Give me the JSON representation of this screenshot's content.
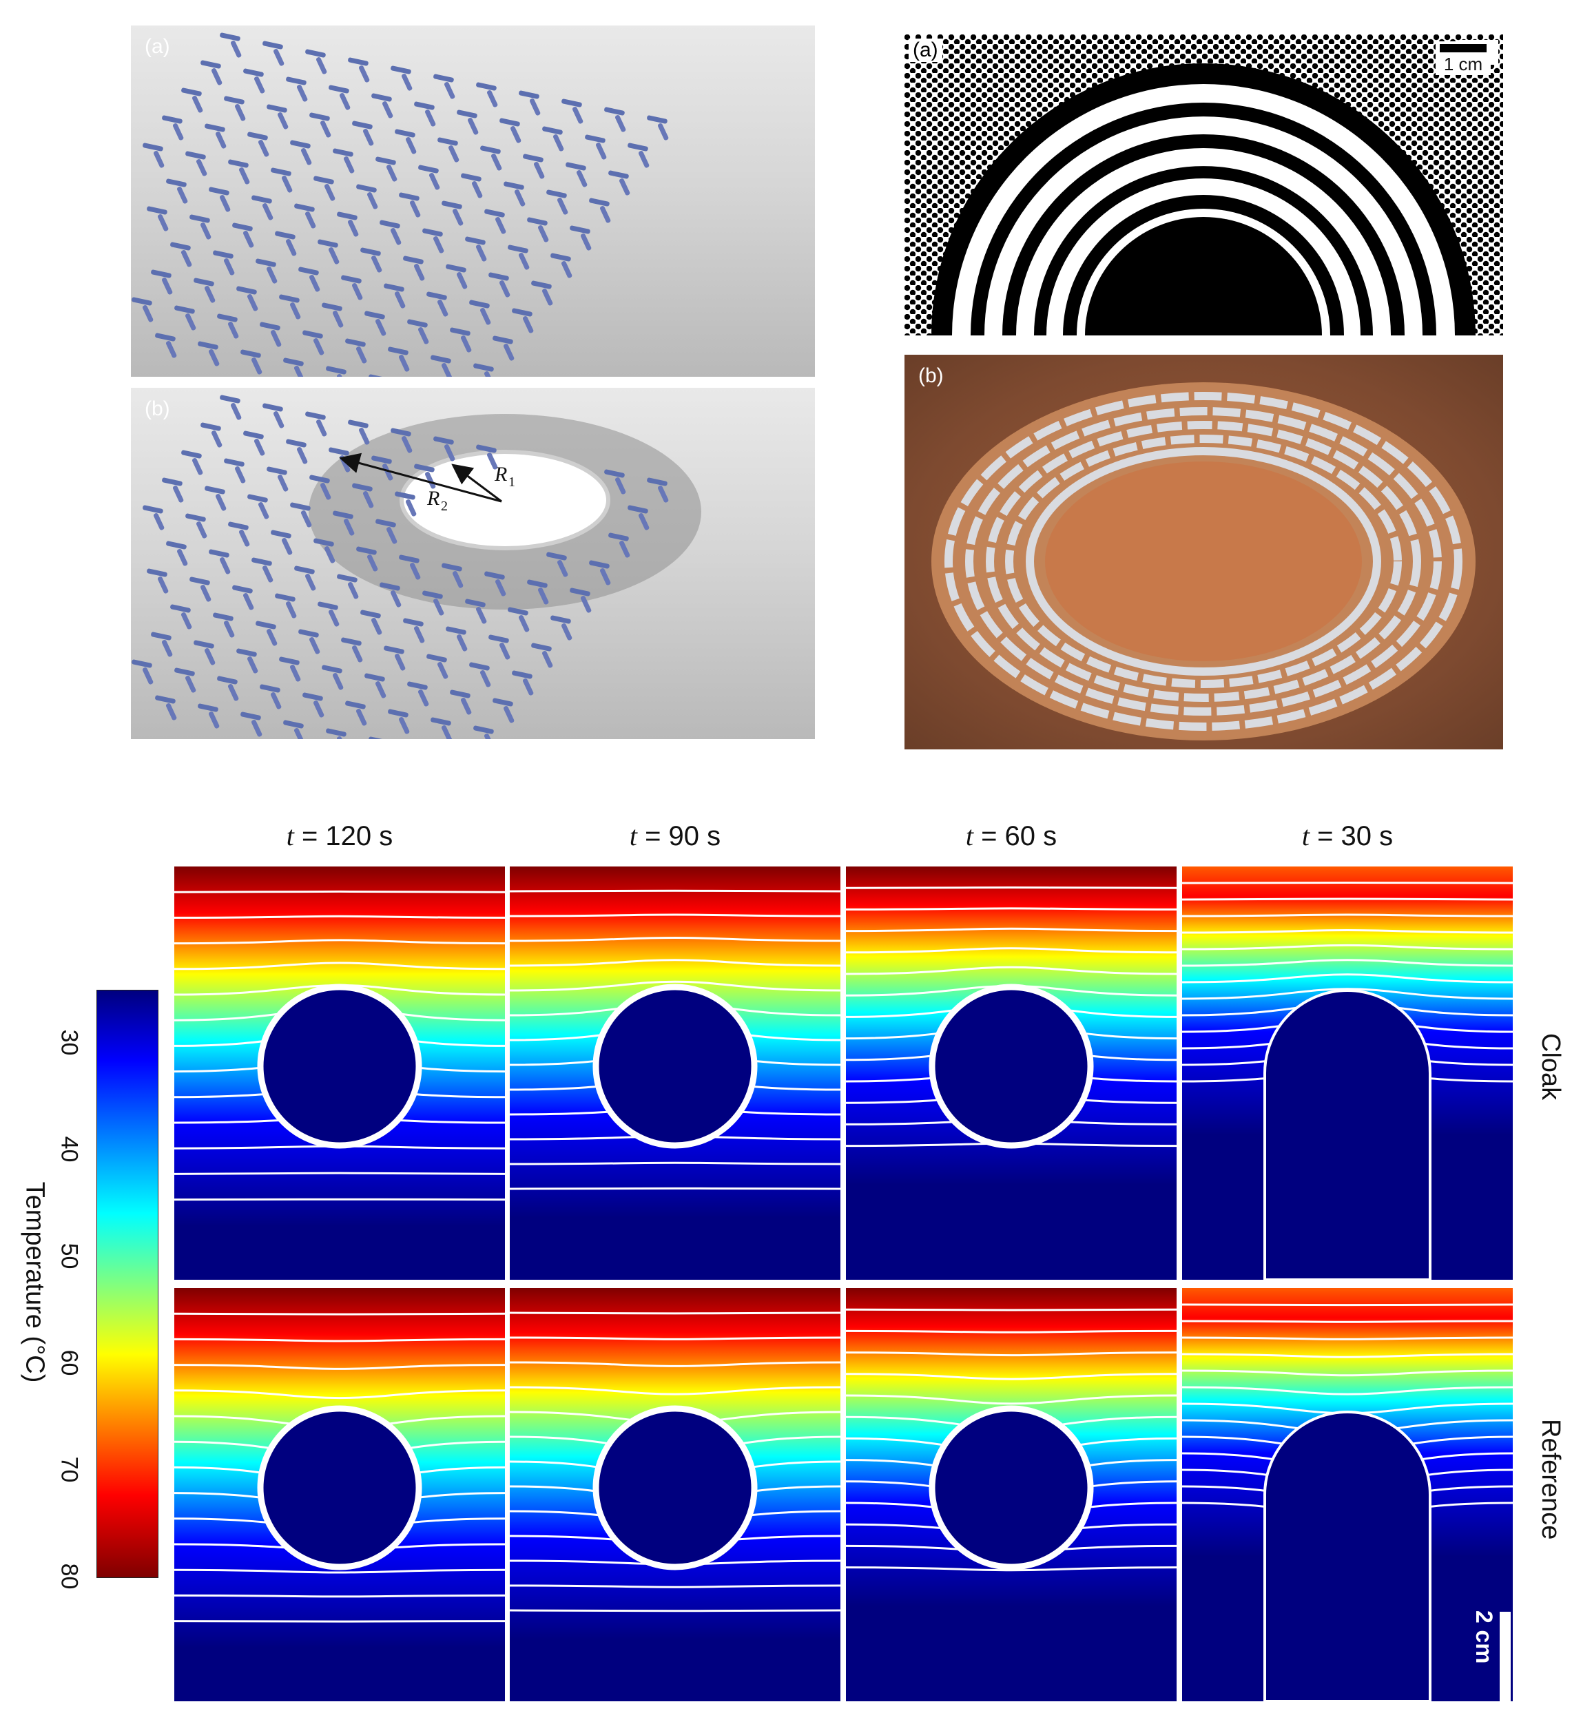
{
  "top_left": {
    "panel_a_label": "(a)",
    "panel_b_label": "(b)",
    "r1_label": "R",
    "r1_sub": "1",
    "r2_label": "R",
    "r2_sub": "2"
  },
  "top_right": {
    "panel_a_label": "(a)",
    "panel_b_label": "(b)",
    "scale_label": "1 cm"
  },
  "thermal": {
    "columns": [
      {
        "t_var": "t",
        "t_rest": " = 120 s"
      },
      {
        "t_var": "t",
        "t_rest": " = 90 s"
      },
      {
        "t_var": "t",
        "t_rest": " = 60 s"
      },
      {
        "t_var": "t",
        "t_rest": " = 30 s"
      }
    ],
    "row_labels": [
      "Cloak",
      "Reference"
    ],
    "colorbar_label": "Temperature (°C)",
    "colorbar_ticks": [
      "30",
      "40",
      "50",
      "60",
      "70",
      "80"
    ],
    "scale_bar_label": "2 cm",
    "colormap": [
      "#00007f",
      "#0000ff",
      "#00ffff",
      "#ffff00",
      "#ff0000",
      "#7f0000"
    ]
  }
}
